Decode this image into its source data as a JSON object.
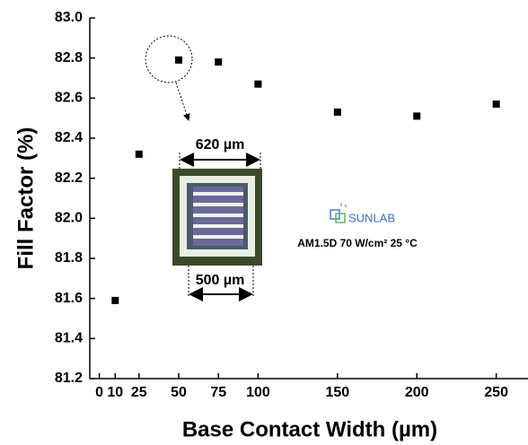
{
  "chart_data": {
    "type": "scatter",
    "xlabel": "Base Contact Width (µm)",
    "ylabel": "Fill Factor (%)",
    "x": [
      10,
      25,
      50,
      75,
      100,
      150,
      200,
      250
    ],
    "values": [
      81.59,
      82.32,
      82.79,
      82.78,
      82.67,
      82.53,
      82.51,
      82.57
    ],
    "color": "#000000",
    "xlim": [
      -6,
      270
    ],
    "xticks": [
      0,
      10,
      25,
      50,
      75,
      100,
      150,
      200,
      250
    ],
    "ylim": [
      81.2,
      83.0
    ],
    "yticks": [
      81.2,
      81.4,
      81.6,
      81.8,
      {
        "value": 82,
        "label": "82.0"
      },
      82.2,
      82.4,
      82.6,
      82.8,
      {
        "value": 83,
        "label": "83.0"
      }
    ],
    "grid": false,
    "annotations": [
      "620 µm",
      "500 µm",
      "SUNLAB",
      "AM1.5D 70 W/cm² 25 °C"
    ]
  }
}
